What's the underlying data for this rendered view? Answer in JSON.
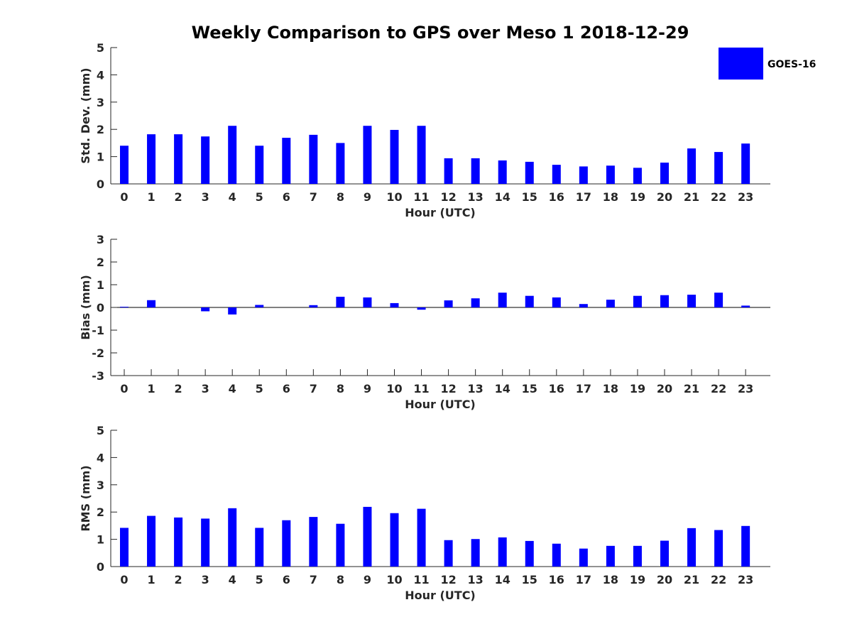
{
  "title": "Weekly Comparison to GPS over Meso 1 2018-12-29",
  "legend": {
    "label": "GOES-16",
    "color": "#0000ff"
  },
  "bar_color": "#0000ff",
  "chart_data": [
    {
      "type": "bar",
      "id": "stddev",
      "series_name": "GOES-16",
      "xlabel": "Hour (UTC)",
      "ylabel": "Std. Dev. (mm)",
      "ylim": [
        0,
        5
      ],
      "yticks": [
        0,
        1,
        2,
        3,
        4,
        5
      ],
      "categories": [
        "0",
        "1",
        "2",
        "3",
        "4",
        "5",
        "6",
        "7",
        "8",
        "9",
        "10",
        "11",
        "12",
        "13",
        "14",
        "15",
        "16",
        "17",
        "18",
        "19",
        "20",
        "21",
        "22",
        "23"
      ],
      "values": [
        1.4,
        1.82,
        1.82,
        1.74,
        2.13,
        1.4,
        1.69,
        1.8,
        1.5,
        2.13,
        1.98,
        2.13,
        0.94,
        0.94,
        0.86,
        0.81,
        0.7,
        0.64,
        0.67,
        0.59,
        0.78,
        1.3,
        1.17,
        1.48
      ]
    },
    {
      "type": "bar",
      "id": "bias",
      "series_name": "GOES-16",
      "xlabel": "Hour (UTC)",
      "ylabel": "Bias (mm)",
      "ylim": [
        -3,
        3
      ],
      "yticks": [
        -3,
        -2,
        -1,
        0,
        1,
        2,
        3
      ],
      "categories": [
        "0",
        "1",
        "2",
        "3",
        "4",
        "5",
        "6",
        "7",
        "8",
        "9",
        "10",
        "11",
        "12",
        "13",
        "14",
        "15",
        "16",
        "17",
        "18",
        "19",
        "20",
        "21",
        "22",
        "23"
      ],
      "values": [
        0.03,
        0.32,
        0.0,
        -0.17,
        -0.31,
        0.11,
        0.0,
        0.1,
        0.47,
        0.44,
        0.19,
        -0.1,
        0.31,
        0.4,
        0.65,
        0.51,
        0.44,
        0.15,
        0.34,
        0.51,
        0.54,
        0.56,
        0.65,
        0.08
      ]
    },
    {
      "type": "bar",
      "id": "rms",
      "series_name": "GOES-16",
      "xlabel": "Hour (UTC)",
      "ylabel": "RMS (mm)",
      "ylim": [
        0,
        5
      ],
      "yticks": [
        0,
        1,
        2,
        3,
        4,
        5
      ],
      "categories": [
        "0",
        "1",
        "2",
        "3",
        "4",
        "5",
        "6",
        "7",
        "8",
        "9",
        "10",
        "11",
        "12",
        "13",
        "14",
        "15",
        "16",
        "17",
        "18",
        "19",
        "20",
        "21",
        "22",
        "23"
      ],
      "values": [
        1.42,
        1.86,
        1.8,
        1.76,
        2.14,
        1.42,
        1.7,
        1.82,
        1.57,
        2.19,
        1.96,
        2.12,
        0.97,
        1.01,
        1.07,
        0.94,
        0.84,
        0.66,
        0.76,
        0.76,
        0.95,
        1.41,
        1.34,
        1.49
      ]
    }
  ]
}
